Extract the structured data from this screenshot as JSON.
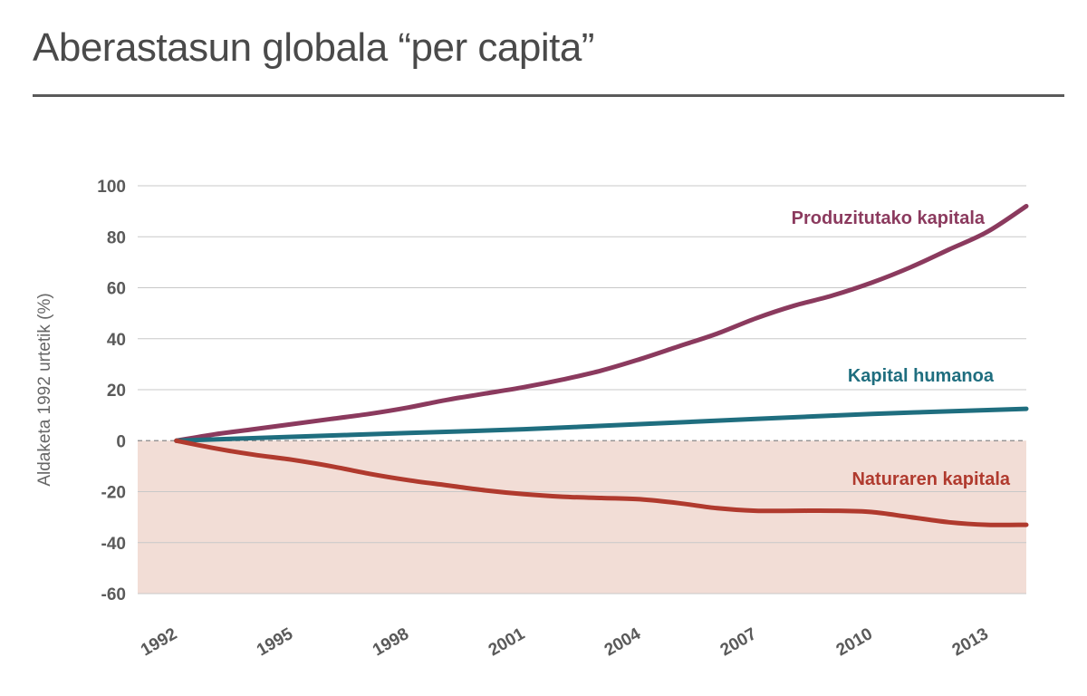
{
  "title": "Aberastasun globala “per capita”",
  "chart_data": {
    "type": "line",
    "title": "Aberastasun globala “per capita”",
    "xlabel": "",
    "ylabel": "Aldaketa 1992 urtetik (%)",
    "x_ticks": [
      "1992",
      "1995",
      "1998",
      "2001",
      "2004",
      "2007",
      "2010",
      "2013"
    ],
    "y_ticks": [
      "100",
      "80",
      "60",
      "40",
      "20",
      "0",
      "-20",
      "-40",
      "-60"
    ],
    "xlim": [
      1991,
      2014
    ],
    "ylim": [
      -60,
      100
    ],
    "grid": true,
    "negative_region_shaded": true,
    "zero_line_style": "dashed",
    "legend": "inline labels",
    "series": [
      {
        "name": "Produzitutako kapitala",
        "color": "#8b3a5e",
        "x": [
          1992,
          1993,
          1994,
          1995,
          1996,
          1997,
          1998,
          1999,
          2000,
          2001,
          2002,
          2003,
          2004,
          2005,
          2006,
          2007,
          2008,
          2009,
          2010,
          2011,
          2012,
          2013,
          2014
        ],
        "y": [
          0,
          2.5,
          4.5,
          6.5,
          8.5,
          10.5,
          13,
          16,
          18.5,
          21,
          24,
          27.5,
          32,
          37,
          42,
          48,
          53,
          57,
          62,
          68,
          75,
          82,
          92
        ]
      },
      {
        "name": "Kapital humanoa",
        "color": "#1f6e7f",
        "x": [
          1992,
          1995,
          1998,
          2001,
          2004,
          2007,
          2010,
          2013,
          2014
        ],
        "y": [
          0,
          1.5,
          3,
          4.5,
          6.5,
          8.5,
          10.5,
          12,
          12.5
        ]
      },
      {
        "name": "Naturaren kapitala",
        "color": "#b03a2e",
        "x": [
          1992,
          1993,
          1994,
          1995,
          1996,
          1997,
          1998,
          1999,
          2000,
          2001,
          2002,
          2003,
          2004,
          2005,
          2006,
          2007,
          2008,
          2009,
          2010,
          2011,
          2012,
          2013,
          2014
        ],
        "y": [
          0,
          -3,
          -5.5,
          -7.5,
          -10,
          -13,
          -15.5,
          -17.5,
          -19.5,
          -21,
          -22,
          -22.5,
          -23,
          -24.5,
          -26.5,
          -27.5,
          -27.5,
          -27.5,
          -28,
          -30,
          -32,
          -33,
          -33
        ]
      }
    ]
  }
}
